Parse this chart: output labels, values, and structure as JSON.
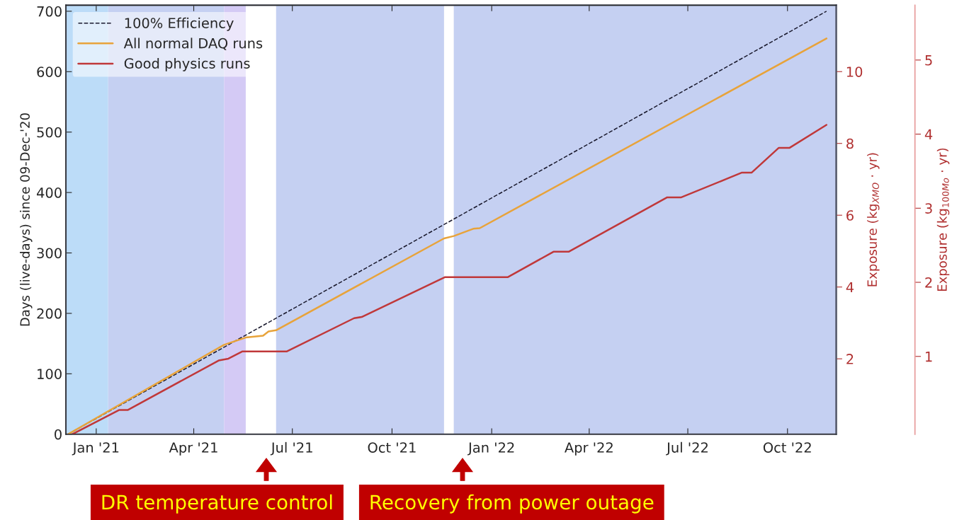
{
  "chart_data": {
    "type": "line",
    "ylabel": "Days (live-days) since 09-Dec-'20",
    "y2label": "Exposure (kg$_{XMO}$ · yr)",
    "y3label": "Exposure (kg$_{100Mo}$ · yr)",
    "xlim": [
      "2020-12-04",
      "2022-11-15"
    ],
    "xticks": [
      {
        "value": "2021-01-01",
        "label": "Jan '21"
      },
      {
        "value": "2021-04-01",
        "label": "Apr '21"
      },
      {
        "value": "2021-07-01",
        "label": "Jul '21"
      },
      {
        "value": "2021-10-01",
        "label": "Oct '21"
      },
      {
        "value": "2022-01-01",
        "label": "Jan '22"
      },
      {
        "value": "2022-04-01",
        "label": "Apr '22"
      },
      {
        "value": "2022-07-01",
        "label": "Jul '22"
      },
      {
        "value": "2022-10-01",
        "label": "Oct '22"
      }
    ],
    "ylim": [
      0,
      710
    ],
    "yticks": [
      0,
      100,
      200,
      300,
      400,
      500,
      600,
      700
    ],
    "y2lim": [
      -0.1,
      11.85
    ],
    "y2ticks": [
      2,
      4,
      6,
      8,
      10
    ],
    "y3lim": [
      -0.05,
      5.74
    ],
    "y3ticks": [
      1,
      2,
      3,
      4,
      5
    ],
    "grid": false,
    "legend": "top left",
    "series": [
      {
        "name": "100% Efficiency",
        "color": "#1a1a2e",
        "line_style": "dashed",
        "x": [
          "2020-12-06",
          "2022-11-06"
        ],
        "values": [
          0,
          700
        ]
      },
      {
        "name": "All normal DAQ runs",
        "color": "#e8a33a",
        "x": [
          "2020-12-06",
          "2021-04-29",
          "2021-05-19",
          "2021-06-04",
          "2021-06-09",
          "2021-06-16",
          "2021-11-18",
          "2021-11-27",
          "2021-12-15",
          "2021-12-21",
          "2022-11-06"
        ],
        "values": [
          0,
          148,
          160,
          163,
          170,
          172,
          324,
          328,
          340,
          341,
          655
        ]
      },
      {
        "name": "Good physics runs",
        "color": "#c0383a",
        "x": [
          "2020-12-10",
          "2021-01-22",
          "2021-01-30",
          "2021-04-24",
          "2021-05-03",
          "2021-05-16",
          "2021-06-26",
          "2021-08-27",
          "2021-09-03",
          "2021-11-19",
          "2022-01-16",
          "2022-02-27",
          "2022-03-13",
          "2022-06-12",
          "2022-06-25",
          "2022-08-20",
          "2022-08-29",
          "2022-09-23",
          "2022-10-03",
          "2022-11-06"
        ],
        "values": [
          0,
          40,
          40,
          122,
          125,
          137,
          137,
          192,
          194,
          260,
          260,
          302,
          302,
          392,
          392,
          433,
          433,
          474,
          474,
          512
        ]
      }
    ],
    "bands": [
      {
        "axis": "x",
        "from": "2020-12-04",
        "to": "2021-01-12",
        "color": "#bcdcf8"
      },
      {
        "axis": "x",
        "from": "2021-01-12",
        "to": "2021-04-29",
        "color": "#c5d0f2"
      },
      {
        "axis": "x",
        "from": "2021-04-29",
        "to": "2021-05-19",
        "color": "#d4caf5"
      },
      {
        "axis": "x",
        "from": "2021-06-16",
        "to": "2021-11-18",
        "color": "#c5d0f2"
      },
      {
        "axis": "x",
        "from": "2021-11-27",
        "to": "2022-11-15",
        "color": "#c5d0f2"
      }
    ],
    "annotations": [
      "DR temperature control",
      "Recovery from power outage"
    ]
  }
}
